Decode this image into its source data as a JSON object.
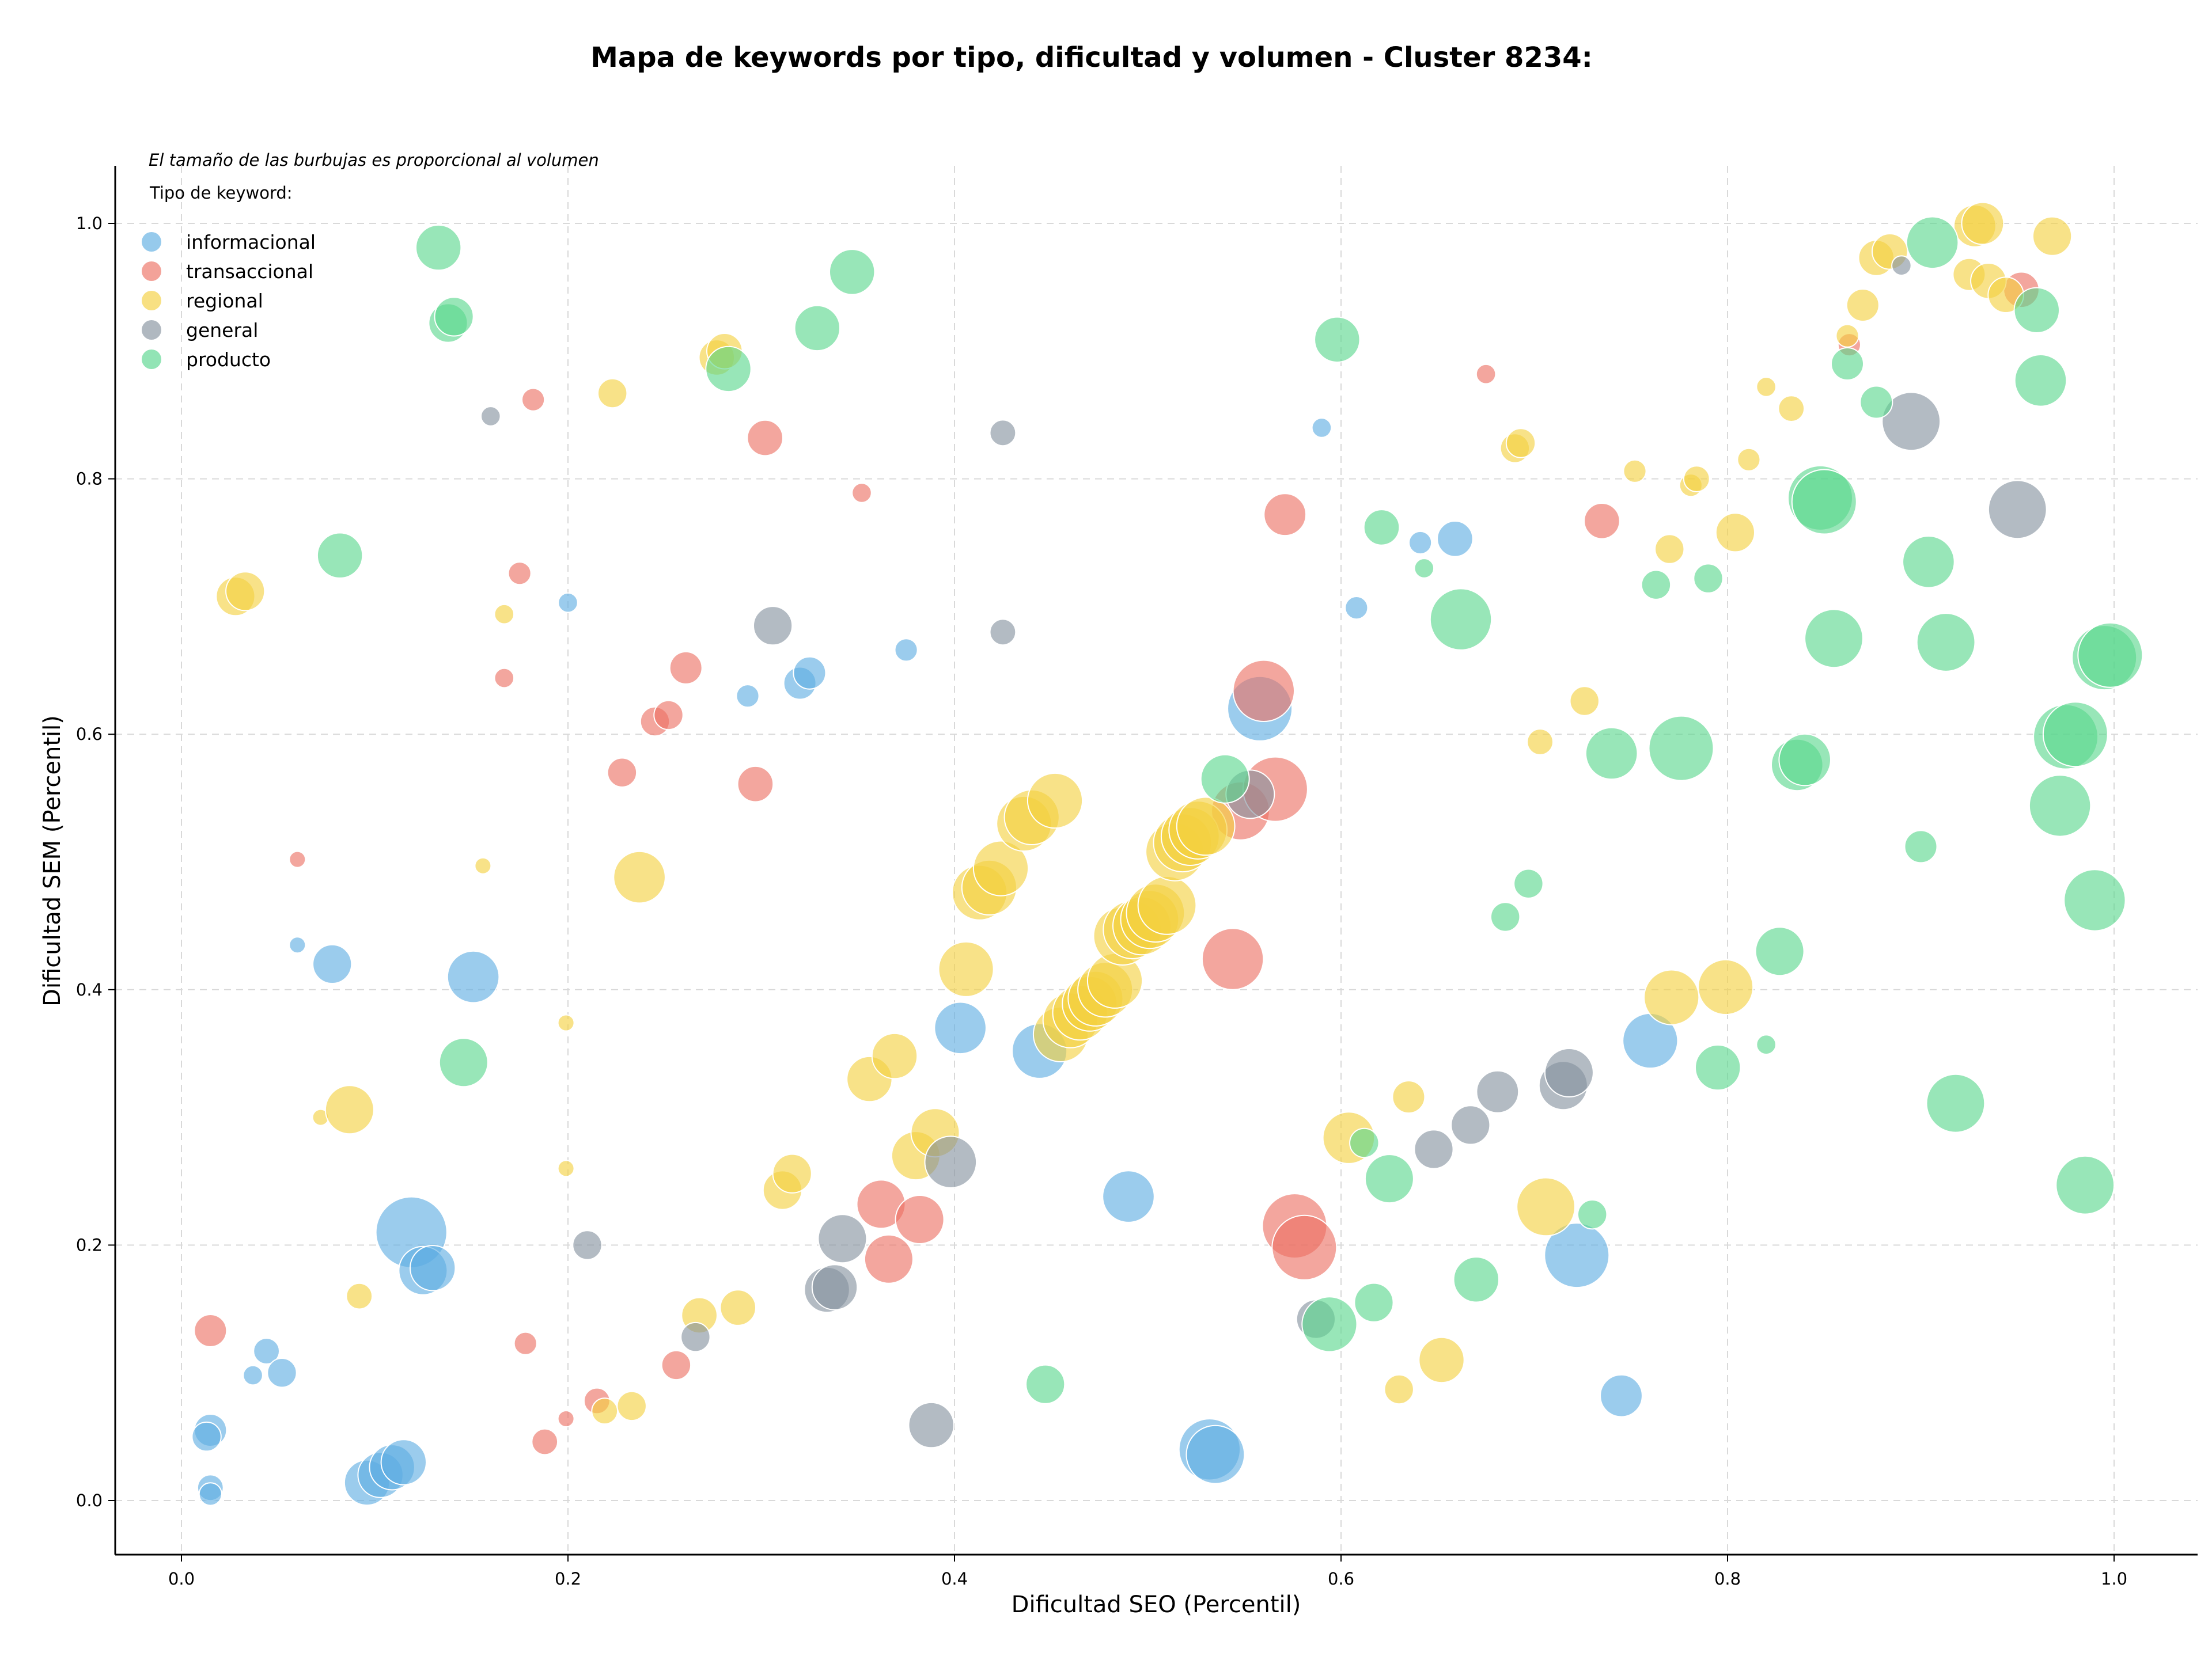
{
  "chart_data": {
    "type": "scatter",
    "title": "Mapa de keywords por tipo, dificultad y volumen - Cluster 8234:",
    "xlabel": "Dificultad SEO (Percentil)",
    "ylabel": "Dificultad SEM (Percentil)",
    "xlim": [
      -0.035,
      1.05
    ],
    "ylim": [
      -0.045,
      1.05
    ],
    "x_ticks": [
      "0.0",
      "0.2",
      "0.4",
      "0.6",
      "0.8",
      "1.0"
    ],
    "y_ticks": [
      "0.0",
      "0.2",
      "0.4",
      "0.6",
      "0.8",
      "1.0"
    ],
    "grid": true,
    "legend_position": "top-left",
    "legend_note": "El tamaño de las burbujas es proporcional al volumen",
    "legend_title": "Tipo de keyword:",
    "series": [
      {
        "name": "informacional",
        "color": "#5DADE2",
        "points": [
          [
            0.015,
            0.055,
            1.0
          ],
          [
            0.013,
            0.05,
            0.9
          ],
          [
            0.015,
            0.01,
            0.8
          ],
          [
            0.015,
            0.005,
            0.7
          ],
          [
            0.037,
            0.098,
            0.6
          ],
          [
            0.044,
            0.117,
            0.8
          ],
          [
            0.052,
            0.1,
            0.9
          ],
          [
            0.06,
            0.435,
            0.5
          ],
          [
            0.078,
            0.42,
            1.2
          ],
          [
            0.096,
            0.014,
            1.4
          ],
          [
            0.103,
            0.02,
            1.4
          ],
          [
            0.109,
            0.026,
            1.4
          ],
          [
            0.115,
            0.03,
            1.4
          ],
          [
            0.119,
            0.21,
            2.2
          ],
          [
            0.125,
            0.18,
            1.5
          ],
          [
            0.13,
            0.182,
            1.4
          ],
          [
            0.151,
            0.41,
            1.6
          ],
          [
            0.2,
            0.703,
            0.6
          ],
          [
            0.293,
            0.63,
            0.7
          ],
          [
            0.32,
            0.64,
            1.0
          ],
          [
            0.325,
            0.648,
            1.0
          ],
          [
            0.375,
            0.666,
            0.7
          ],
          [
            0.403,
            0.37,
            1.6
          ],
          [
            0.444,
            0.352,
            1.7
          ],
          [
            0.49,
            0.238,
            1.6
          ],
          [
            0.532,
            0.04,
            1.9
          ],
          [
            0.535,
            0.036,
            1.8
          ],
          [
            0.558,
            0.62,
            2.0
          ],
          [
            0.59,
            0.84,
            0.6
          ],
          [
            0.608,
            0.699,
            0.7
          ],
          [
            0.641,
            0.75,
            0.7
          ],
          [
            0.659,
            0.753,
            1.1
          ],
          [
            0.722,
            0.192,
            2.0
          ],
          [
            0.745,
            0.082,
            1.3
          ],
          [
            0.76,
            0.36,
            1.7
          ]
        ]
      },
      {
        "name": "transaccional",
        "color": "#EC7063",
        "points": [
          [
            0.015,
            0.133,
            1.0
          ],
          [
            0.06,
            0.502,
            0.5
          ],
          [
            0.167,
            0.644,
            0.6
          ],
          [
            0.175,
            0.726,
            0.7
          ],
          [
            0.178,
            0.123,
            0.7
          ],
          [
            0.182,
            0.862,
            0.7
          ],
          [
            0.188,
            0.046,
            0.8
          ],
          [
            0.199,
            0.064,
            0.5
          ],
          [
            0.215,
            0.078,
            0.8
          ],
          [
            0.228,
            0.57,
            0.9
          ],
          [
            0.245,
            0.61,
            0.9
          ],
          [
            0.252,
            0.615,
            0.9
          ],
          [
            0.256,
            0.106,
            0.9
          ],
          [
            0.261,
            0.652,
            1.0
          ],
          [
            0.297,
            0.561,
            1.1
          ],
          [
            0.302,
            0.832,
            1.1
          ],
          [
            0.352,
            0.789,
            0.6
          ],
          [
            0.362,
            0.232,
            1.5
          ],
          [
            0.366,
            0.189,
            1.5
          ],
          [
            0.382,
            0.22,
            1.5
          ],
          [
            0.544,
            0.424,
            1.9
          ],
          [
            0.548,
            0.54,
            1.8
          ],
          [
            0.56,
            0.634,
            1.9
          ],
          [
            0.566,
            0.557,
            2.0
          ],
          [
            0.571,
            0.772,
            1.3
          ],
          [
            0.576,
            0.215,
            2.0
          ],
          [
            0.581,
            0.198,
            2.0
          ],
          [
            0.675,
            0.882,
            0.6
          ],
          [
            0.735,
            0.767,
            1.1
          ],
          [
            0.863,
            0.905,
            0.7
          ],
          [
            0.952,
            0.948,
            1.1
          ]
        ]
      },
      {
        "name": "regional",
        "color": "#F4D03F",
        "points": [
          [
            0.028,
            0.708,
            1.2
          ],
          [
            0.033,
            0.712,
            1.2
          ],
          [
            0.072,
            0.3,
            0.5
          ],
          [
            0.087,
            0.306,
            1.5
          ],
          [
            0.092,
            0.16,
            0.8
          ],
          [
            0.156,
            0.497,
            0.5
          ],
          [
            0.167,
            0.694,
            0.6
          ],
          [
            0.199,
            0.374,
            0.5
          ],
          [
            0.199,
            0.26,
            0.5
          ],
          [
            0.219,
            0.07,
            0.8
          ],
          [
            0.223,
            0.867,
            0.9
          ],
          [
            0.233,
            0.074,
            0.9
          ],
          [
            0.237,
            0.488,
            1.6
          ],
          [
            0.268,
            0.145,
            1.1
          ],
          [
            0.277,
            0.895,
            1.1
          ],
          [
            0.281,
            0.9,
            1.1
          ],
          [
            0.288,
            0.151,
            1.1
          ],
          [
            0.311,
            0.243,
            1.2
          ],
          [
            0.316,
            0.256,
            1.2
          ],
          [
            0.356,
            0.33,
            1.4
          ],
          [
            0.369,
            0.348,
            1.4
          ],
          [
            0.38,
            0.27,
            1.5
          ],
          [
            0.39,
            0.288,
            1.5
          ],
          [
            0.406,
            0.416,
            1.7
          ],
          [
            0.413,
            0.476,
            1.7
          ],
          [
            0.418,
            0.48,
            1.7
          ],
          [
            0.424,
            0.495,
            1.7
          ],
          [
            0.436,
            0.53,
            1.7
          ],
          [
            0.44,
            0.535,
            1.7
          ],
          [
            0.452,
            0.548,
            1.7
          ],
          [
            0.455,
            0.365,
            1.7
          ],
          [
            0.46,
            0.376,
            1.7
          ],
          [
            0.465,
            0.382,
            1.7
          ],
          [
            0.47,
            0.389,
            1.7
          ],
          [
            0.473,
            0.393,
            1.7
          ],
          [
            0.478,
            0.4,
            1.7
          ],
          [
            0.483,
            0.407,
            1.7
          ],
          [
            0.487,
            0.442,
            1.8
          ],
          [
            0.492,
            0.447,
            1.8
          ],
          [
            0.497,
            0.45,
            1.8
          ],
          [
            0.501,
            0.455,
            1.8
          ],
          [
            0.504,
            0.46,
            1.8
          ],
          [
            0.51,
            0.466,
            1.8
          ],
          [
            0.514,
            0.508,
            1.8
          ],
          [
            0.518,
            0.515,
            1.8
          ],
          [
            0.522,
            0.52,
            1.8
          ],
          [
            0.526,
            0.525,
            1.8
          ],
          [
            0.53,
            0.528,
            1.8
          ],
          [
            0.604,
            0.284,
            1.6
          ],
          [
            0.635,
            0.316,
            1.0
          ],
          [
            0.63,
            0.087,
            0.9
          ],
          [
            0.652,
            0.11,
            1.4
          ],
          [
            0.69,
            0.824,
            0.9
          ],
          [
            0.693,
            0.828,
            0.9
          ],
          [
            0.703,
            0.594,
            0.8
          ],
          [
            0.706,
            0.23,
            1.8
          ],
          [
            0.726,
            0.626,
            0.9
          ],
          [
            0.752,
            0.806,
            0.7
          ],
          [
            0.77,
            0.745,
            0.9
          ],
          [
            0.771,
            0.394,
            1.7
          ],
          [
            0.781,
            0.795,
            0.7
          ],
          [
            0.784,
            0.8,
            0.8
          ],
          [
            0.799,
            0.402,
            1.7
          ],
          [
            0.804,
            0.758,
            1.2
          ],
          [
            0.811,
            0.815,
            0.7
          ],
          [
            0.82,
            0.872,
            0.6
          ],
          [
            0.833,
            0.855,
            0.8
          ],
          [
            0.862,
            0.912,
            0.7
          ],
          [
            0.87,
            0.936,
            1.0
          ],
          [
            0.877,
            0.973,
            1.1
          ],
          [
            0.884,
            0.978,
            1.1
          ],
          [
            0.925,
            0.96,
            1.0
          ],
          [
            0.928,
            0.998,
            1.3
          ],
          [
            0.932,
            1.0,
            1.3
          ],
          [
            0.935,
            0.955,
            1.1
          ],
          [
            0.944,
            0.944,
            1.1
          ],
          [
            0.968,
            0.99,
            1.2
          ]
        ]
      },
      {
        "name": "general",
        "color": "#85929E",
        "points": [
          [
            0.16,
            0.849,
            0.6
          ],
          [
            0.21,
            0.2,
            0.9
          ],
          [
            0.266,
            0.128,
            0.9
          ],
          [
            0.306,
            0.685,
            1.2
          ],
          [
            0.334,
            0.165,
            1.4
          ],
          [
            0.338,
            0.167,
            1.4
          ],
          [
            0.342,
            0.205,
            1.5
          ],
          [
            0.388,
            0.059,
            1.4
          ],
          [
            0.398,
            0.265,
            1.6
          ],
          [
            0.425,
            0.836,
            0.8
          ],
          [
            0.425,
            0.68,
            0.8
          ],
          [
            0.553,
            0.553,
            1.5
          ],
          [
            0.587,
            0.142,
            1.2
          ],
          [
            0.648,
            0.275,
            1.2
          ],
          [
            0.667,
            0.294,
            1.2
          ],
          [
            0.681,
            0.32,
            1.3
          ],
          [
            0.715,
            0.325,
            1.5
          ],
          [
            0.718,
            0.335,
            1.5
          ],
          [
            0.89,
            0.967,
            0.6
          ],
          [
            0.895,
            0.845,
            1.8
          ],
          [
            0.95,
            0.776,
            1.8
          ]
        ]
      },
      {
        "name": "producto",
        "color": "#58D68D",
        "points": [
          [
            0.082,
            0.74,
            1.4
          ],
          [
            0.133,
            0.981,
            1.4
          ],
          [
            0.138,
            0.922,
            1.2
          ],
          [
            0.141,
            0.927,
            1.2
          ],
          [
            0.146,
            0.343,
            1.5
          ],
          [
            0.283,
            0.886,
            1.4
          ],
          [
            0.329,
            0.918,
            1.4
          ],
          [
            0.347,
            0.962,
            1.4
          ],
          [
            0.447,
            0.091,
            1.2
          ],
          [
            0.54,
            0.565,
            1.5
          ],
          [
            0.594,
            0.138,
            1.7
          ],
          [
            0.598,
            0.909,
            1.4
          ],
          [
            0.612,
            0.28,
            0.9
          ],
          [
            0.617,
            0.155,
            1.2
          ],
          [
            0.621,
            0.762,
            1.1
          ],
          [
            0.625,
            0.252,
            1.5
          ],
          [
            0.643,
            0.73,
            0.6
          ],
          [
            0.662,
            0.69,
            1.9
          ],
          [
            0.67,
            0.173,
            1.4
          ],
          [
            0.685,
            0.457,
            0.9
          ],
          [
            0.697,
            0.483,
            0.9
          ],
          [
            0.73,
            0.224,
            0.9
          ],
          [
            0.74,
            0.585,
            1.6
          ],
          [
            0.763,
            0.717,
            0.9
          ],
          [
            0.776,
            0.589,
            2.0
          ],
          [
            0.79,
            0.722,
            0.9
          ],
          [
            0.795,
            0.339,
            1.4
          ],
          [
            0.82,
            0.357,
            0.6
          ],
          [
            0.827,
            0.43,
            1.5
          ],
          [
            0.836,
            0.576,
            1.6
          ],
          [
            0.84,
            0.58,
            1.6
          ],
          [
            0.848,
            0.785,
            2.0
          ],
          [
            0.85,
            0.782,
            2.0
          ],
          [
            0.855,
            0.675,
            1.8
          ],
          [
            0.862,
            0.89,
            1.0
          ],
          [
            0.877,
            0.86,
            1.0
          ],
          [
            0.9,
            0.512,
            1.0
          ],
          [
            0.904,
            0.735,
            1.6
          ],
          [
            0.906,
            0.985,
            1.6
          ],
          [
            0.913,
            0.672,
            1.8
          ],
          [
            0.918,
            0.311,
            1.8
          ],
          [
            0.96,
            0.932,
            1.4
          ],
          [
            0.962,
            0.877,
            1.6
          ],
          [
            0.972,
            0.544,
            1.9
          ],
          [
            0.975,
            0.598,
            2.0
          ],
          [
            0.98,
            0.6,
            2.0
          ],
          [
            0.985,
            0.247,
            1.8
          ],
          [
            0.99,
            0.47,
            1.9
          ],
          [
            0.995,
            0.66,
            2.0
          ],
          [
            0.998,
            0.662,
            2.0
          ]
        ]
      }
    ]
  }
}
